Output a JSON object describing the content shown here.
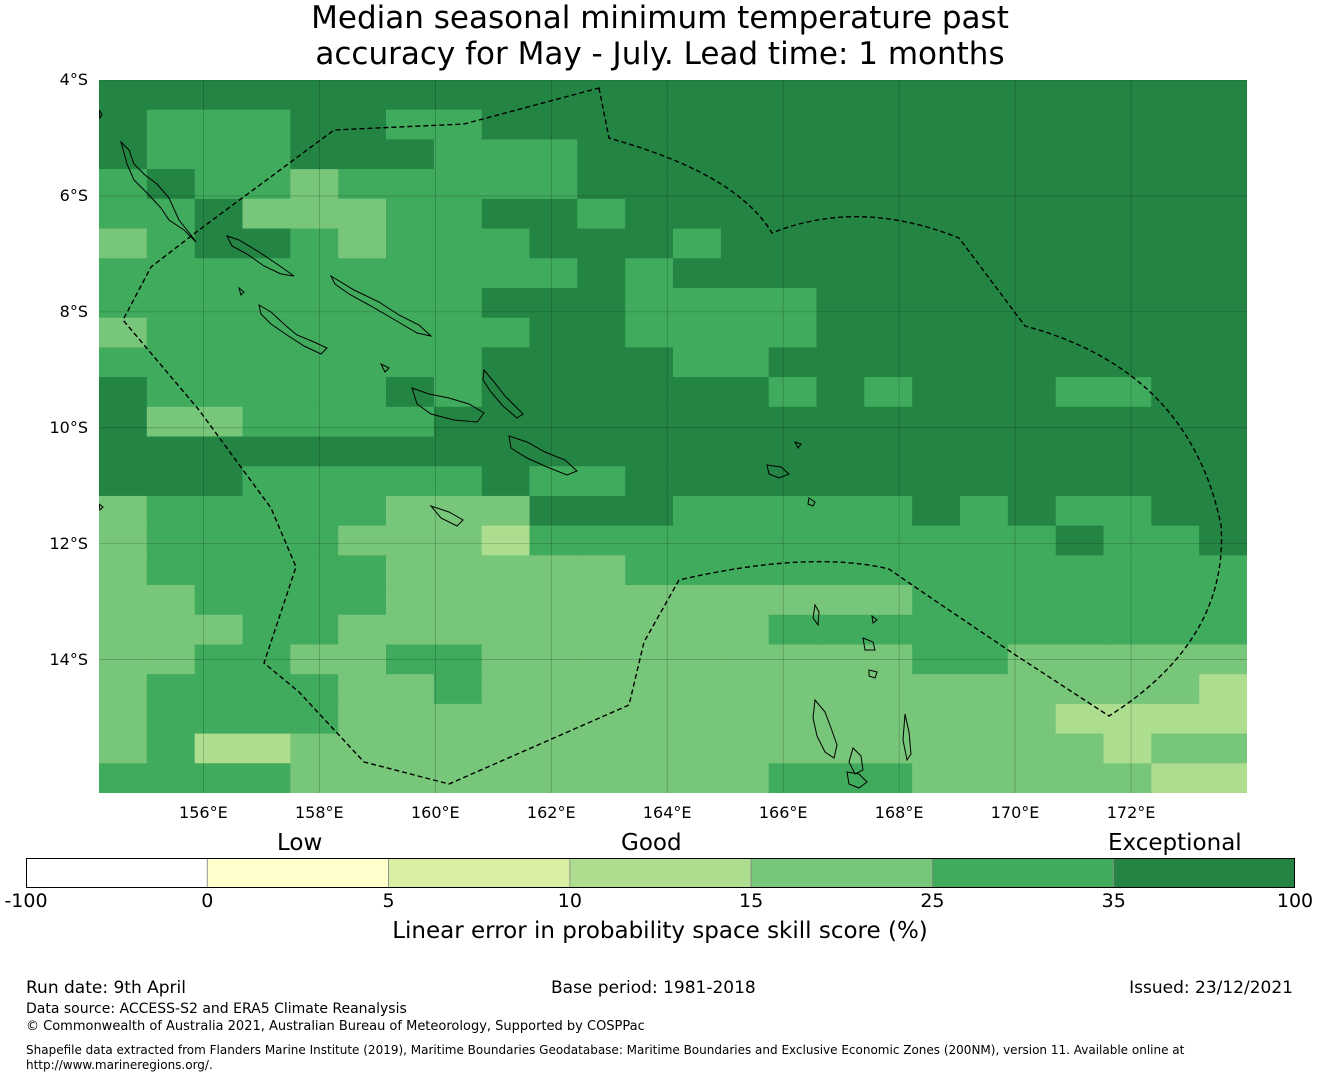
{
  "title_line1": "Median seasonal minimum temperature past",
  "title_line2": "accuracy for May - July. Lead time: 1 months",
  "map": {
    "lon_range": [
      154.2,
      174.0
    ],
    "lat_range": [
      -16.3,
      -4.0
    ],
    "grid_cell_deg": 0.833,
    "lat_ticks": [
      {
        "value": -4,
        "label": "4°S"
      },
      {
        "value": -6,
        "label": "6°S"
      },
      {
        "value": -8,
        "label": "8°S"
      },
      {
        "value": -10,
        "label": "10°S"
      },
      {
        "value": -12,
        "label": "12°S"
      },
      {
        "value": -14,
        "label": "14°S"
      }
    ],
    "lon_ticks": [
      {
        "value": 156,
        "label": "156°E"
      },
      {
        "value": 158,
        "label": "158°E"
      },
      {
        "value": 160,
        "label": "160°E"
      },
      {
        "value": 162,
        "label": "162°E"
      },
      {
        "value": 164,
        "label": "164°E"
      },
      {
        "value": 166,
        "label": "166°E"
      },
      {
        "value": 168,
        "label": "168°E"
      },
      {
        "value": 170,
        "label": "170°E"
      },
      {
        "value": 172,
        "label": "172°E"
      }
    ],
    "skill_grid_class_rows": [
      "666666666666666666666666",
      "655566556666666666666666",
      "655566655566666666666666",
      "565545555566666666666666",
      "556444556656666666666666",
      "456654555666566666666666",
      "555555555565666666666666",
      "555555556665555666666666",
      "455555555665555666666666",
      "555555556666556666666666",
      "655555656666665656665566",
      "644555566666666666666666",
      "666666666666666666666666",
      "666555556556666666666666",
      "455555444666555556565566",
      "455554443555555555556556",
      "455555444445555555555555",
      "445555444444444445555555",
      "444554444444445555555555",
      "445544554444444445544444",
      "455554454444444444444443",
      "455554444444444444443333",
      "453344444444444444444344",
      "555544444444445554444433"
    ]
  },
  "colorbar": {
    "category_labels": [
      "Low",
      "Good",
      "Exceptional"
    ],
    "colors": [
      "#ffffff",
      "#ffffcc",
      "#d9f0a3",
      "#addd8e",
      "#78c679",
      "#41ab5d",
      "#238443"
    ],
    "ticks": [
      "-100",
      "0",
      "5",
      "10",
      "15",
      "25",
      "35",
      "100"
    ],
    "title": "Linear error in probability space skill score (%)"
  },
  "footer": {
    "run_date": "Run date: 9th April",
    "base_period": "Base period: 1981-2018",
    "issued": "Issued: 23/12/2021",
    "data_source": "Data source: ACCESS-S2 and ERA5 Climate Reanalysis",
    "copyright": "© Commonwealth of Australia 2021, Australian Bureau of Meteorology, Supported by COSPPac",
    "shapefile_line1": "Shapefile data extracted from Flanders Marine Institute (2019), Maritime Boundaries Geodatabase: Maritime Boundaries and Exclusive Economic Zones (200NM), version 11. Available online at",
    "shapefile_line2": "http://www.marineregions.org/."
  }
}
